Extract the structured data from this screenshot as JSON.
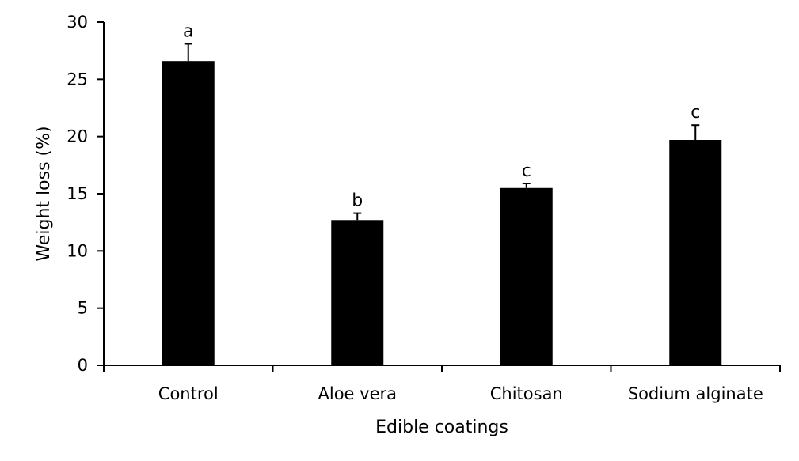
{
  "chart_data": {
    "type": "bar",
    "title": "",
    "xlabel": "Edible coatings",
    "ylabel": "Weight loss  (%)",
    "ylim": [
      0,
      30
    ],
    "yticks": [
      0,
      5,
      10,
      15,
      20,
      25,
      30
    ],
    "grid": false,
    "legend": "none",
    "bar_color": "#000000",
    "categories": [
      "Control",
      "Aloe vera",
      "Chitosan",
      "Sodium alginate"
    ],
    "values": [
      26.6,
      12.7,
      15.5,
      19.7
    ],
    "errors": [
      1.5,
      0.6,
      0.4,
      1.3
    ],
    "significance_labels": [
      "a",
      "b",
      "c",
      "c"
    ]
  }
}
